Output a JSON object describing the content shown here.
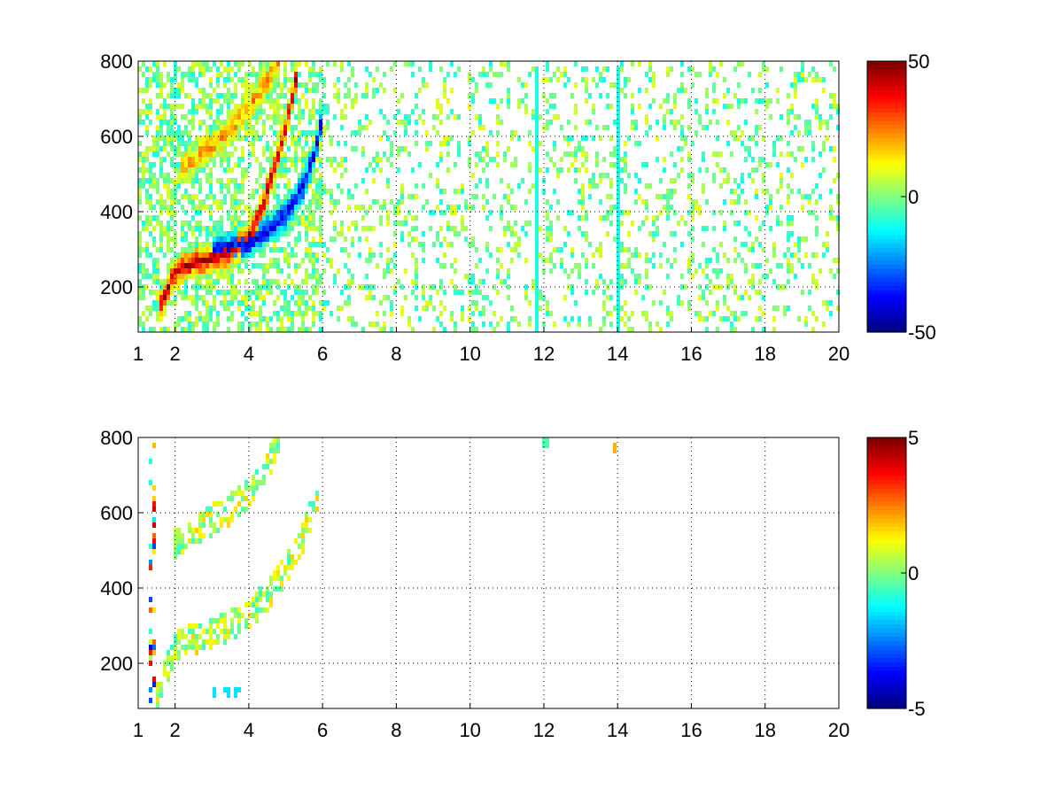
{
  "chart_data": [
    {
      "type": "heatmap",
      "colormap": "jet",
      "xlim": [
        1,
        20
      ],
      "ylim": [
        80,
        800
      ],
      "x_ticks": [
        1,
        2,
        4,
        6,
        8,
        10,
        12,
        14,
        16,
        18,
        20
      ],
      "y_ticks": [
        200,
        400,
        600,
        800
      ],
      "grid": true,
      "colorbar": {
        "min": -50,
        "max": 50,
        "ticks": [
          50,
          0,
          -50
        ]
      },
      "features": [
        {
          "description": "curved positive ridge",
          "points": [
            [
              1.6,
              150
            ],
            [
              2.0,
              240
            ],
            [
              2.5,
              265
            ],
            [
              3.0,
              275
            ],
            [
              3.5,
              290
            ],
            [
              4.0,
              330
            ],
            [
              4.4,
              420
            ],
            [
              4.7,
              520
            ],
            [
              5.0,
              620
            ],
            [
              5.3,
              760
            ]
          ],
          "value": 45
        },
        {
          "description": "curved negative ridge",
          "points": [
            [
              3.0,
              300
            ],
            [
              3.5,
              305
            ],
            [
              4.0,
              315
            ],
            [
              4.5,
              350
            ],
            [
              5.0,
              390
            ],
            [
              5.5,
              470
            ],
            [
              5.8,
              560
            ],
            [
              6.0,
              650
            ]
          ],
          "value": -42
        },
        {
          "description": "upper positive arc",
          "points": [
            [
              2.2,
              520
            ],
            [
              2.8,
              560
            ],
            [
              3.3,
              600
            ],
            [
              3.8,
              650
            ],
            [
              4.3,
              720
            ],
            [
              4.8,
              790
            ]
          ],
          "value": 22
        },
        {
          "description": "vertical stripes",
          "x": [
            11.8,
            14.0
          ],
          "value": -10
        }
      ]
    },
    {
      "type": "heatmap",
      "colormap": "jet",
      "xlim": [
        1,
        20
      ],
      "ylim": [
        80,
        800
      ],
      "x_ticks": [
        1,
        2,
        4,
        6,
        8,
        10,
        12,
        14,
        16,
        18,
        20
      ],
      "y_ticks": [
        200,
        400,
        600,
        800
      ],
      "grid": true,
      "colorbar": {
        "min": -5,
        "max": 5,
        "ticks": [
          5,
          0,
          -5
        ]
      },
      "features": [
        {
          "description": "lower curved band",
          "points": [
            [
              1.5,
              100
            ],
            [
              2.0,
              240
            ],
            [
              2.5,
              265
            ],
            [
              3.0,
              275
            ],
            [
              3.5,
              300
            ],
            [
              4.0,
              330
            ],
            [
              4.5,
              380
            ],
            [
              5.0,
              450
            ],
            [
              5.5,
              540
            ],
            [
              5.9,
              650
            ]
          ],
          "value": 0.5
        },
        {
          "description": "upper band",
          "points": [
            [
              2.0,
              520
            ],
            [
              2.5,
              550
            ],
            [
              3.0,
              580
            ],
            [
              3.5,
              610
            ],
            [
              4.0,
              650
            ],
            [
              4.5,
              720
            ],
            [
              4.8,
              790
            ]
          ],
          "value": 0.5
        }
      ]
    }
  ]
}
